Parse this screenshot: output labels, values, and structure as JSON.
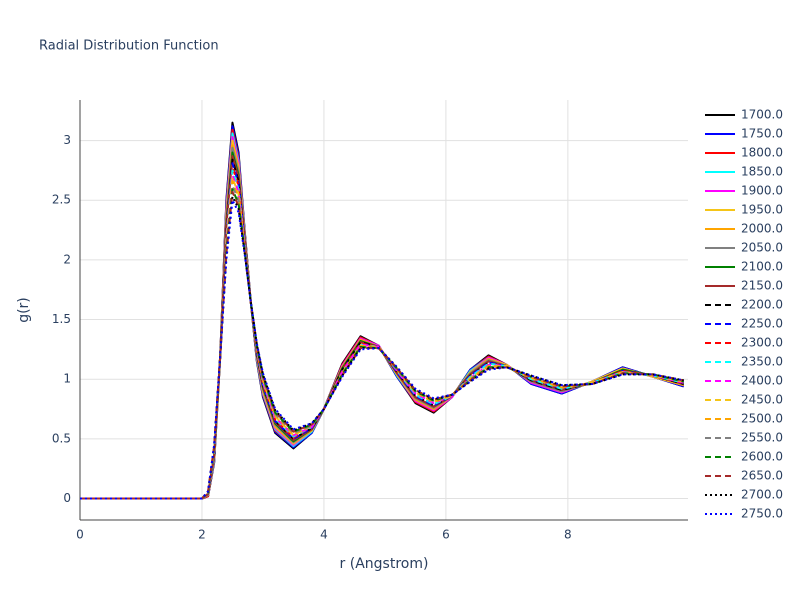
{
  "chart_data": {
    "type": "line",
    "title": "Radial Distribution Function",
    "x_label": "r (Angstrom)",
    "y_label": "g(r)",
    "xlim": [
      0,
      9.97
    ],
    "ylim": [
      -0.18,
      3.34
    ],
    "xticks": [
      0,
      2,
      4,
      6,
      8
    ],
    "yticks": [
      0,
      0.5,
      1,
      1.5,
      2,
      2.5,
      3
    ],
    "grid": true,
    "legend": "right",
    "x": [
      0,
      1.0,
      2.0,
      2.1,
      2.2,
      2.3,
      2.4,
      2.5,
      2.6,
      2.7,
      2.8,
      2.9,
      3.0,
      3.2,
      3.5,
      3.8,
      4.0,
      4.3,
      4.6,
      4.9,
      5.2,
      5.5,
      5.8,
      6.1,
      6.4,
      6.7,
      7.0,
      7.4,
      7.9,
      8.4,
      8.9,
      9.4,
      9.9
    ],
    "series": [
      {
        "name": "1700.0",
        "color": "#000000",
        "dash": "solid",
        "values": [
          0,
          0,
          0,
          0.02,
          0.3,
          1.2,
          2.5,
          3.15,
          2.9,
          2.25,
          1.65,
          1.15,
          0.85,
          0.55,
          0.42,
          0.55,
          0.75,
          1.13,
          1.36,
          1.28,
          1.02,
          0.8,
          0.72,
          0.85,
          1.08,
          1.2,
          1.12,
          0.96,
          0.88,
          0.98,
          1.1,
          1.02,
          0.94
        ]
      },
      {
        "name": "1750.0",
        "color": "#0000ff",
        "dash": "solid",
        "values": [
          0,
          0,
          0,
          0.02,
          0.31,
          1.2,
          2.48,
          3.12,
          2.88,
          2.24,
          1.65,
          1.16,
          0.86,
          0.56,
          0.43,
          0.55,
          0.75,
          1.12,
          1.35,
          1.28,
          1.02,
          0.81,
          0.73,
          0.85,
          1.08,
          1.19,
          1.12,
          0.96,
          0.88,
          0.98,
          1.1,
          1.02,
          0.94
        ]
      },
      {
        "name": "1800.0",
        "color": "#ff0000",
        "dash": "solid",
        "values": [
          0,
          0,
          0,
          0.02,
          0.32,
          1.2,
          2.45,
          3.09,
          2.85,
          2.23,
          1.65,
          1.17,
          0.87,
          0.57,
          0.44,
          0.56,
          0.75,
          1.12,
          1.35,
          1.28,
          1.03,
          0.81,
          0.73,
          0.85,
          1.07,
          1.19,
          1.12,
          0.97,
          0.89,
          0.98,
          1.09,
          1.02,
          0.95
        ]
      },
      {
        "name": "1850.0",
        "color": "#00ffff",
        "dash": "solid",
        "values": [
          0,
          0,
          0,
          0.03,
          0.32,
          1.2,
          2.43,
          3.06,
          2.83,
          2.22,
          1.65,
          1.17,
          0.88,
          0.58,
          0.44,
          0.56,
          0.75,
          1.11,
          1.34,
          1.28,
          1.03,
          0.82,
          0.74,
          0.85,
          1.07,
          1.18,
          1.12,
          0.97,
          0.89,
          0.98,
          1.09,
          1.02,
          0.95
        ]
      },
      {
        "name": "1900.0",
        "color": "#ff00ff",
        "dash": "solid",
        "values": [
          0,
          0,
          0,
          0.03,
          0.33,
          1.2,
          2.41,
          3.03,
          2.81,
          2.21,
          1.65,
          1.18,
          0.89,
          0.59,
          0.45,
          0.57,
          0.75,
          1.11,
          1.34,
          1.28,
          1.04,
          0.82,
          0.74,
          0.85,
          1.06,
          1.18,
          1.12,
          0.97,
          0.89,
          0.98,
          1.09,
          1.02,
          0.95
        ]
      },
      {
        "name": "1950.0",
        "color": "#f5c518",
        "dash": "solid",
        "values": [
          0,
          0,
          0,
          0.03,
          0.34,
          1.2,
          2.38,
          3.0,
          2.78,
          2.2,
          1.65,
          1.19,
          0.9,
          0.6,
          0.46,
          0.57,
          0.75,
          1.1,
          1.33,
          1.27,
          1.04,
          0.83,
          0.75,
          0.86,
          1.06,
          1.17,
          1.12,
          0.98,
          0.9,
          0.98,
          1.09,
          1.02,
          0.95
        ]
      },
      {
        "name": "2000.0",
        "color": "#ffa500",
        "dash": "solid",
        "values": [
          0,
          0,
          0,
          0.03,
          0.34,
          1.2,
          2.36,
          2.96,
          2.76,
          2.19,
          1.65,
          1.19,
          0.91,
          0.61,
          0.47,
          0.57,
          0.75,
          1.1,
          1.33,
          1.27,
          1.04,
          0.83,
          0.75,
          0.86,
          1.05,
          1.17,
          1.11,
          0.98,
          0.9,
          0.97,
          1.08,
          1.03,
          0.95
        ]
      },
      {
        "name": "2050.0",
        "color": "#808080",
        "dash": "solid",
        "values": [
          0,
          0,
          0,
          0.03,
          0.35,
          1.2,
          2.34,
          2.94,
          2.74,
          2.18,
          1.65,
          1.2,
          0.92,
          0.62,
          0.47,
          0.58,
          0.75,
          1.09,
          1.32,
          1.27,
          1.05,
          0.84,
          0.76,
          0.86,
          1.05,
          1.16,
          1.11,
          0.98,
          0.9,
          0.97,
          1.08,
          1.03,
          0.96
        ]
      },
      {
        "name": "2100.0",
        "color": "#008000",
        "dash": "solid",
        "values": [
          0,
          0,
          0,
          0.04,
          0.36,
          1.2,
          2.31,
          2.9,
          2.71,
          2.17,
          1.65,
          1.21,
          0.93,
          0.63,
          0.48,
          0.58,
          0.75,
          1.09,
          1.32,
          1.27,
          1.05,
          0.85,
          0.77,
          0.86,
          1.04,
          1.15,
          1.11,
          0.99,
          0.91,
          0.97,
          1.08,
          1.03,
          0.96
        ]
      },
      {
        "name": "2150.0",
        "color": "#a52a2a",
        "dash": "solid",
        "values": [
          0,
          0,
          0,
          0.04,
          0.36,
          1.2,
          2.29,
          2.87,
          2.69,
          2.16,
          1.65,
          1.21,
          0.94,
          0.64,
          0.49,
          0.58,
          0.75,
          1.08,
          1.31,
          1.27,
          1.05,
          0.85,
          0.77,
          0.86,
          1.04,
          1.15,
          1.11,
          0.99,
          0.91,
          0.97,
          1.07,
          1.03,
          0.96
        ]
      },
      {
        "name": "2200.0",
        "color": "#000000",
        "dash": "dash",
        "values": [
          0,
          0,
          0,
          0.04,
          0.37,
          1.2,
          2.26,
          2.84,
          2.66,
          2.15,
          1.65,
          1.22,
          0.95,
          0.65,
          0.5,
          0.59,
          0.75,
          1.08,
          1.31,
          1.27,
          1.06,
          0.86,
          0.78,
          0.86,
          1.03,
          1.14,
          1.11,
          0.99,
          0.91,
          0.97,
          1.07,
          1.03,
          0.96
        ]
      },
      {
        "name": "2250.0",
        "color": "#0000ff",
        "dash": "dash",
        "values": [
          0,
          0,
          0,
          0.04,
          0.38,
          1.2,
          2.24,
          2.81,
          2.64,
          2.15,
          1.65,
          1.23,
          0.95,
          0.65,
          0.5,
          0.59,
          0.75,
          1.07,
          1.3,
          1.27,
          1.06,
          0.86,
          0.78,
          0.86,
          1.03,
          1.14,
          1.11,
          1.0,
          0.92,
          0.97,
          1.07,
          1.03,
          0.97
        ]
      },
      {
        "name": "2300.0",
        "color": "#ff0000",
        "dash": "dash",
        "values": [
          0,
          0,
          0,
          0.04,
          0.39,
          1.2,
          2.22,
          2.78,
          2.62,
          2.14,
          1.65,
          1.24,
          0.96,
          0.66,
          0.51,
          0.6,
          0.75,
          1.07,
          1.3,
          1.27,
          1.07,
          0.87,
          0.79,
          0.86,
          1.02,
          1.13,
          1.11,
          1.0,
          0.92,
          0.97,
          1.07,
          1.03,
          0.97
        ]
      },
      {
        "name": "2350.0",
        "color": "#00ffff",
        "dash": "dash",
        "values": [
          0,
          0,
          0,
          0.04,
          0.39,
          1.2,
          2.19,
          2.75,
          2.59,
          2.13,
          1.65,
          1.24,
          0.97,
          0.67,
          0.52,
          0.6,
          0.75,
          1.06,
          1.29,
          1.27,
          1.07,
          0.87,
          0.79,
          0.86,
          1.02,
          1.13,
          1.11,
          1.0,
          0.92,
          0.97,
          1.06,
          1.03,
          0.97
        ]
      },
      {
        "name": "2400.0",
        "color": "#ff00ff",
        "dash": "dash",
        "values": [
          0,
          0,
          0,
          0.05,
          0.4,
          1.2,
          2.17,
          2.71,
          2.57,
          2.12,
          1.65,
          1.25,
          0.98,
          0.68,
          0.53,
          0.6,
          0.75,
          1.06,
          1.29,
          1.27,
          1.07,
          0.88,
          0.8,
          0.86,
          1.01,
          1.12,
          1.11,
          1.01,
          0.93,
          0.97,
          1.06,
          1.03,
          0.97
        ]
      },
      {
        "name": "2450.0",
        "color": "#f5c518",
        "dash": "dash",
        "values": [
          0,
          0,
          0,
          0.05,
          0.41,
          1.2,
          2.15,
          2.69,
          2.55,
          2.11,
          1.65,
          1.26,
          0.99,
          0.69,
          0.53,
          0.61,
          0.75,
          1.05,
          1.28,
          1.27,
          1.08,
          0.89,
          0.81,
          0.86,
          1.01,
          1.11,
          1.11,
          1.01,
          0.93,
          0.97,
          1.06,
          1.03,
          0.98
        ]
      },
      {
        "name": "2500.0",
        "color": "#ffa500",
        "dash": "dash",
        "values": [
          0,
          0,
          0,
          0.05,
          0.41,
          1.2,
          2.12,
          2.66,
          2.52,
          2.1,
          1.65,
          1.26,
          1.0,
          0.7,
          0.54,
          0.61,
          0.75,
          1.05,
          1.28,
          1.26,
          1.08,
          0.89,
          0.81,
          0.87,
          1.0,
          1.11,
          1.1,
          1.01,
          0.93,
          0.96,
          1.05,
          1.04,
          0.98
        ]
      },
      {
        "name": "2550.0",
        "color": "#808080",
        "dash": "dash",
        "values": [
          0,
          0,
          0,
          0.05,
          0.42,
          1.2,
          2.1,
          2.62,
          2.5,
          2.09,
          1.65,
          1.27,
          1.01,
          0.71,
          0.55,
          0.61,
          0.75,
          1.04,
          1.27,
          1.26,
          1.08,
          0.9,
          0.82,
          0.87,
          1.0,
          1.1,
          1.1,
          1.02,
          0.94,
          0.96,
          1.05,
          1.04,
          0.98
        ]
      },
      {
        "name": "2600.0",
        "color": "#008000",
        "dash": "dash",
        "values": [
          0,
          0,
          0,
          0.05,
          0.43,
          1.2,
          2.07,
          2.59,
          2.47,
          2.08,
          1.65,
          1.28,
          1.02,
          0.72,
          0.56,
          0.62,
          0.75,
          1.04,
          1.27,
          1.26,
          1.09,
          0.9,
          0.82,
          0.87,
          0.99,
          1.1,
          1.1,
          1.02,
          0.94,
          0.96,
          1.05,
          1.04,
          0.98
        ]
      },
      {
        "name": "2650.0",
        "color": "#a52a2a",
        "dash": "dash",
        "values": [
          0,
          0,
          0,
          0.06,
          0.44,
          1.2,
          2.05,
          2.57,
          2.45,
          2.07,
          1.65,
          1.29,
          1.03,
          0.73,
          0.56,
          0.62,
          0.75,
          1.03,
          1.26,
          1.26,
          1.09,
          0.91,
          0.83,
          0.87,
          0.99,
          1.09,
          1.1,
          1.02,
          0.94,
          0.96,
          1.05,
          1.04,
          0.99
        ]
      },
      {
        "name": "2700.0",
        "color": "#000000",
        "dash": "dot",
        "values": [
          0,
          0,
          0,
          0.06,
          0.44,
          1.2,
          2.03,
          2.53,
          2.43,
          2.06,
          1.65,
          1.29,
          1.04,
          0.74,
          0.57,
          0.63,
          0.75,
          1.03,
          1.26,
          1.26,
          1.1,
          0.91,
          0.83,
          0.87,
          0.98,
          1.09,
          1.1,
          1.03,
          0.95,
          0.96,
          1.04,
          1.04,
          0.99
        ]
      },
      {
        "name": "2750.0",
        "color": "#0000ff",
        "dash": "dot",
        "values": [
          0,
          0,
          0,
          0.06,
          0.45,
          1.2,
          2.0,
          2.5,
          2.4,
          2.05,
          1.65,
          1.3,
          1.05,
          0.75,
          0.58,
          0.63,
          0.75,
          1.02,
          1.25,
          1.26,
          1.1,
          0.92,
          0.84,
          0.87,
          0.98,
          1.08,
          1.1,
          1.03,
          0.95,
          0.96,
          1.04,
          1.04,
          0.99
        ]
      }
    ]
  }
}
